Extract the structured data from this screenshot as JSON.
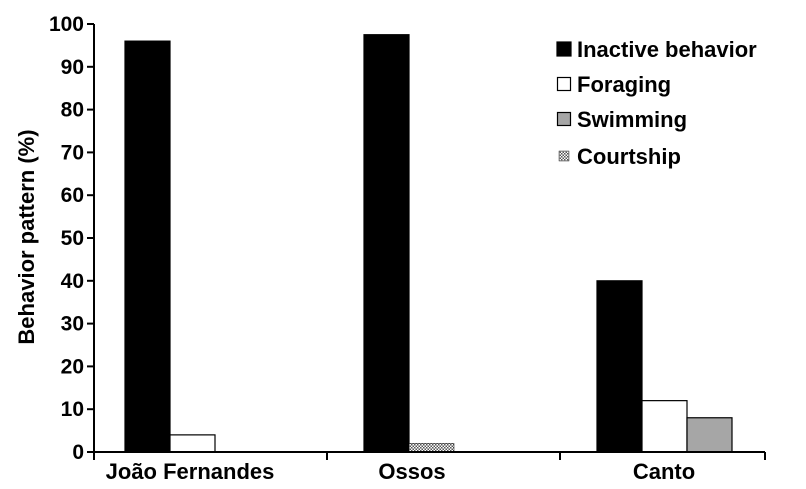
{
  "chart_data": {
    "type": "bar",
    "title": "",
    "xlabel": "",
    "ylabel": "Behavior pattern (%)",
    "ylim": [
      0,
      100
    ],
    "yticks": [
      0,
      10,
      20,
      30,
      40,
      50,
      60,
      70,
      80,
      90,
      100
    ],
    "categories": [
      "João Fernandes",
      "Ossos",
      "Canto"
    ],
    "series": [
      {
        "name": "Inactive behavior",
        "values": [
          96,
          97.5,
          40
        ],
        "color": "#000000",
        "pattern": "solid"
      },
      {
        "name": "Foraging",
        "values": [
          4,
          0,
          12
        ],
        "color": "#ffffff",
        "pattern": "outline"
      },
      {
        "name": "Swimming",
        "values": [
          0,
          0,
          8
        ],
        "color": "#a6a6a6",
        "pattern": "solid"
      },
      {
        "name": "Courtship",
        "values": [
          0,
          2,
          0
        ],
        "color": "#9a9a9a",
        "pattern": "dotted"
      }
    ],
    "legend": {
      "position": "top-right"
    },
    "grid": false
  }
}
